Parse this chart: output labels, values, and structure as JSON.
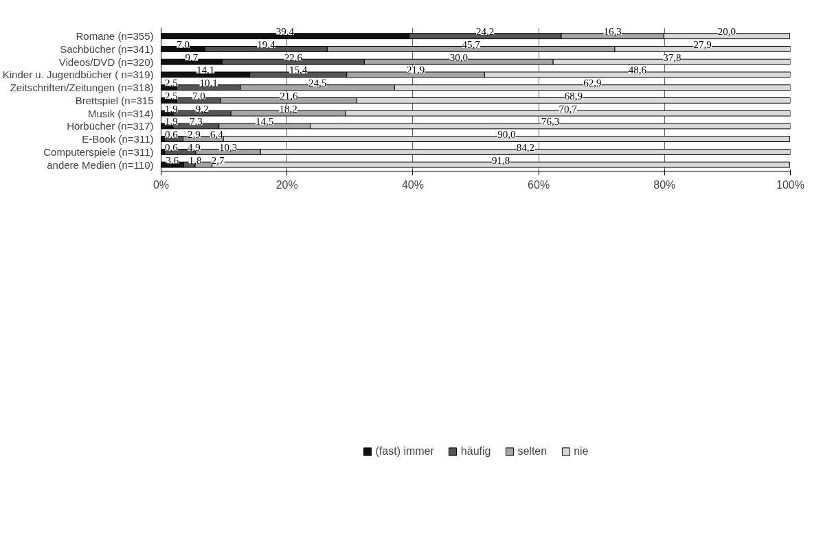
{
  "chart_data": {
    "type": "bar",
    "orientation": "horizontal",
    "stacked": true,
    "categories": [
      "Romane (n=355)",
      "Sachbücher (n=341)",
      "Videos/DVD (n=320)",
      "Kinder u. Jugendbücher ( n=319)",
      "Zeitschriften/Zeitungen (n=318)",
      "Brettspiel (n=315",
      "Musik (n=314)",
      "Hörbücher (n=317)",
      "E-Book (n=311)",
      "Computerspiele (n=311)",
      "andere Medien (n=110)"
    ],
    "series": [
      {
        "name": "(fast) immer",
        "color": "#111111",
        "values": [
          39.4,
          7.0,
          9.7,
          14.1,
          2.5,
          2.5,
          1.9,
          1.9,
          0.6,
          0.6,
          3.6
        ],
        "value_labels": [
          "39,4",
          "7,0",
          "9,7",
          "14,1",
          "2,5",
          "2,5",
          "1,9",
          "1,9",
          "0,6",
          "0,6",
          "3,6"
        ]
      },
      {
        "name": "häufig",
        "color": "#555555",
        "values": [
          24.2,
          19.4,
          22.6,
          15.4,
          10.1,
          7.0,
          9.2,
          7.3,
          2.9,
          4.9,
          1.8
        ],
        "value_labels": [
          "24,2",
          "19,4",
          "22,6",
          "15,4",
          "10,1",
          "7,0",
          "9,2",
          "7,3",
          "2,9",
          "4,9",
          "1,8"
        ]
      },
      {
        "name": "selten",
        "color": "#a6a6a6",
        "values": [
          16.3,
          45.7,
          30.0,
          21.9,
          24.5,
          21.6,
          18.2,
          14.5,
          6.4,
          10.3,
          2.7
        ],
        "value_labels": [
          "16,3",
          "45,7",
          "30,0",
          "21,9",
          "24,5",
          "21,6",
          "18,2",
          "14,5",
          "6,4",
          "10,3",
          "2,7"
        ]
      },
      {
        "name": "nie",
        "color": "#d9d9d9",
        "values": [
          20.0,
          27.9,
          37.8,
          48.6,
          62.9,
          68.9,
          70.7,
          76.3,
          90.0,
          84.2,
          91.8
        ],
        "value_labels": [
          "20,0",
          "27,9",
          "37,8",
          "48,6",
          "62,9",
          "68,9",
          "70,7",
          "76,3",
          "90,0",
          "84,2",
          "91,8"
        ]
      }
    ],
    "xlim": [
      0,
      100
    ],
    "xticks": [
      {
        "value": 0,
        "label": "0%"
      },
      {
        "value": 20,
        "label": "20%"
      },
      {
        "value": 40,
        "label": "40%"
      },
      {
        "value": 60,
        "label": "60%"
      },
      {
        "value": 80,
        "label": "80%"
      },
      {
        "value": 100,
        "label": "100%"
      }
    ],
    "grid": "x",
    "legend": "bottom"
  }
}
